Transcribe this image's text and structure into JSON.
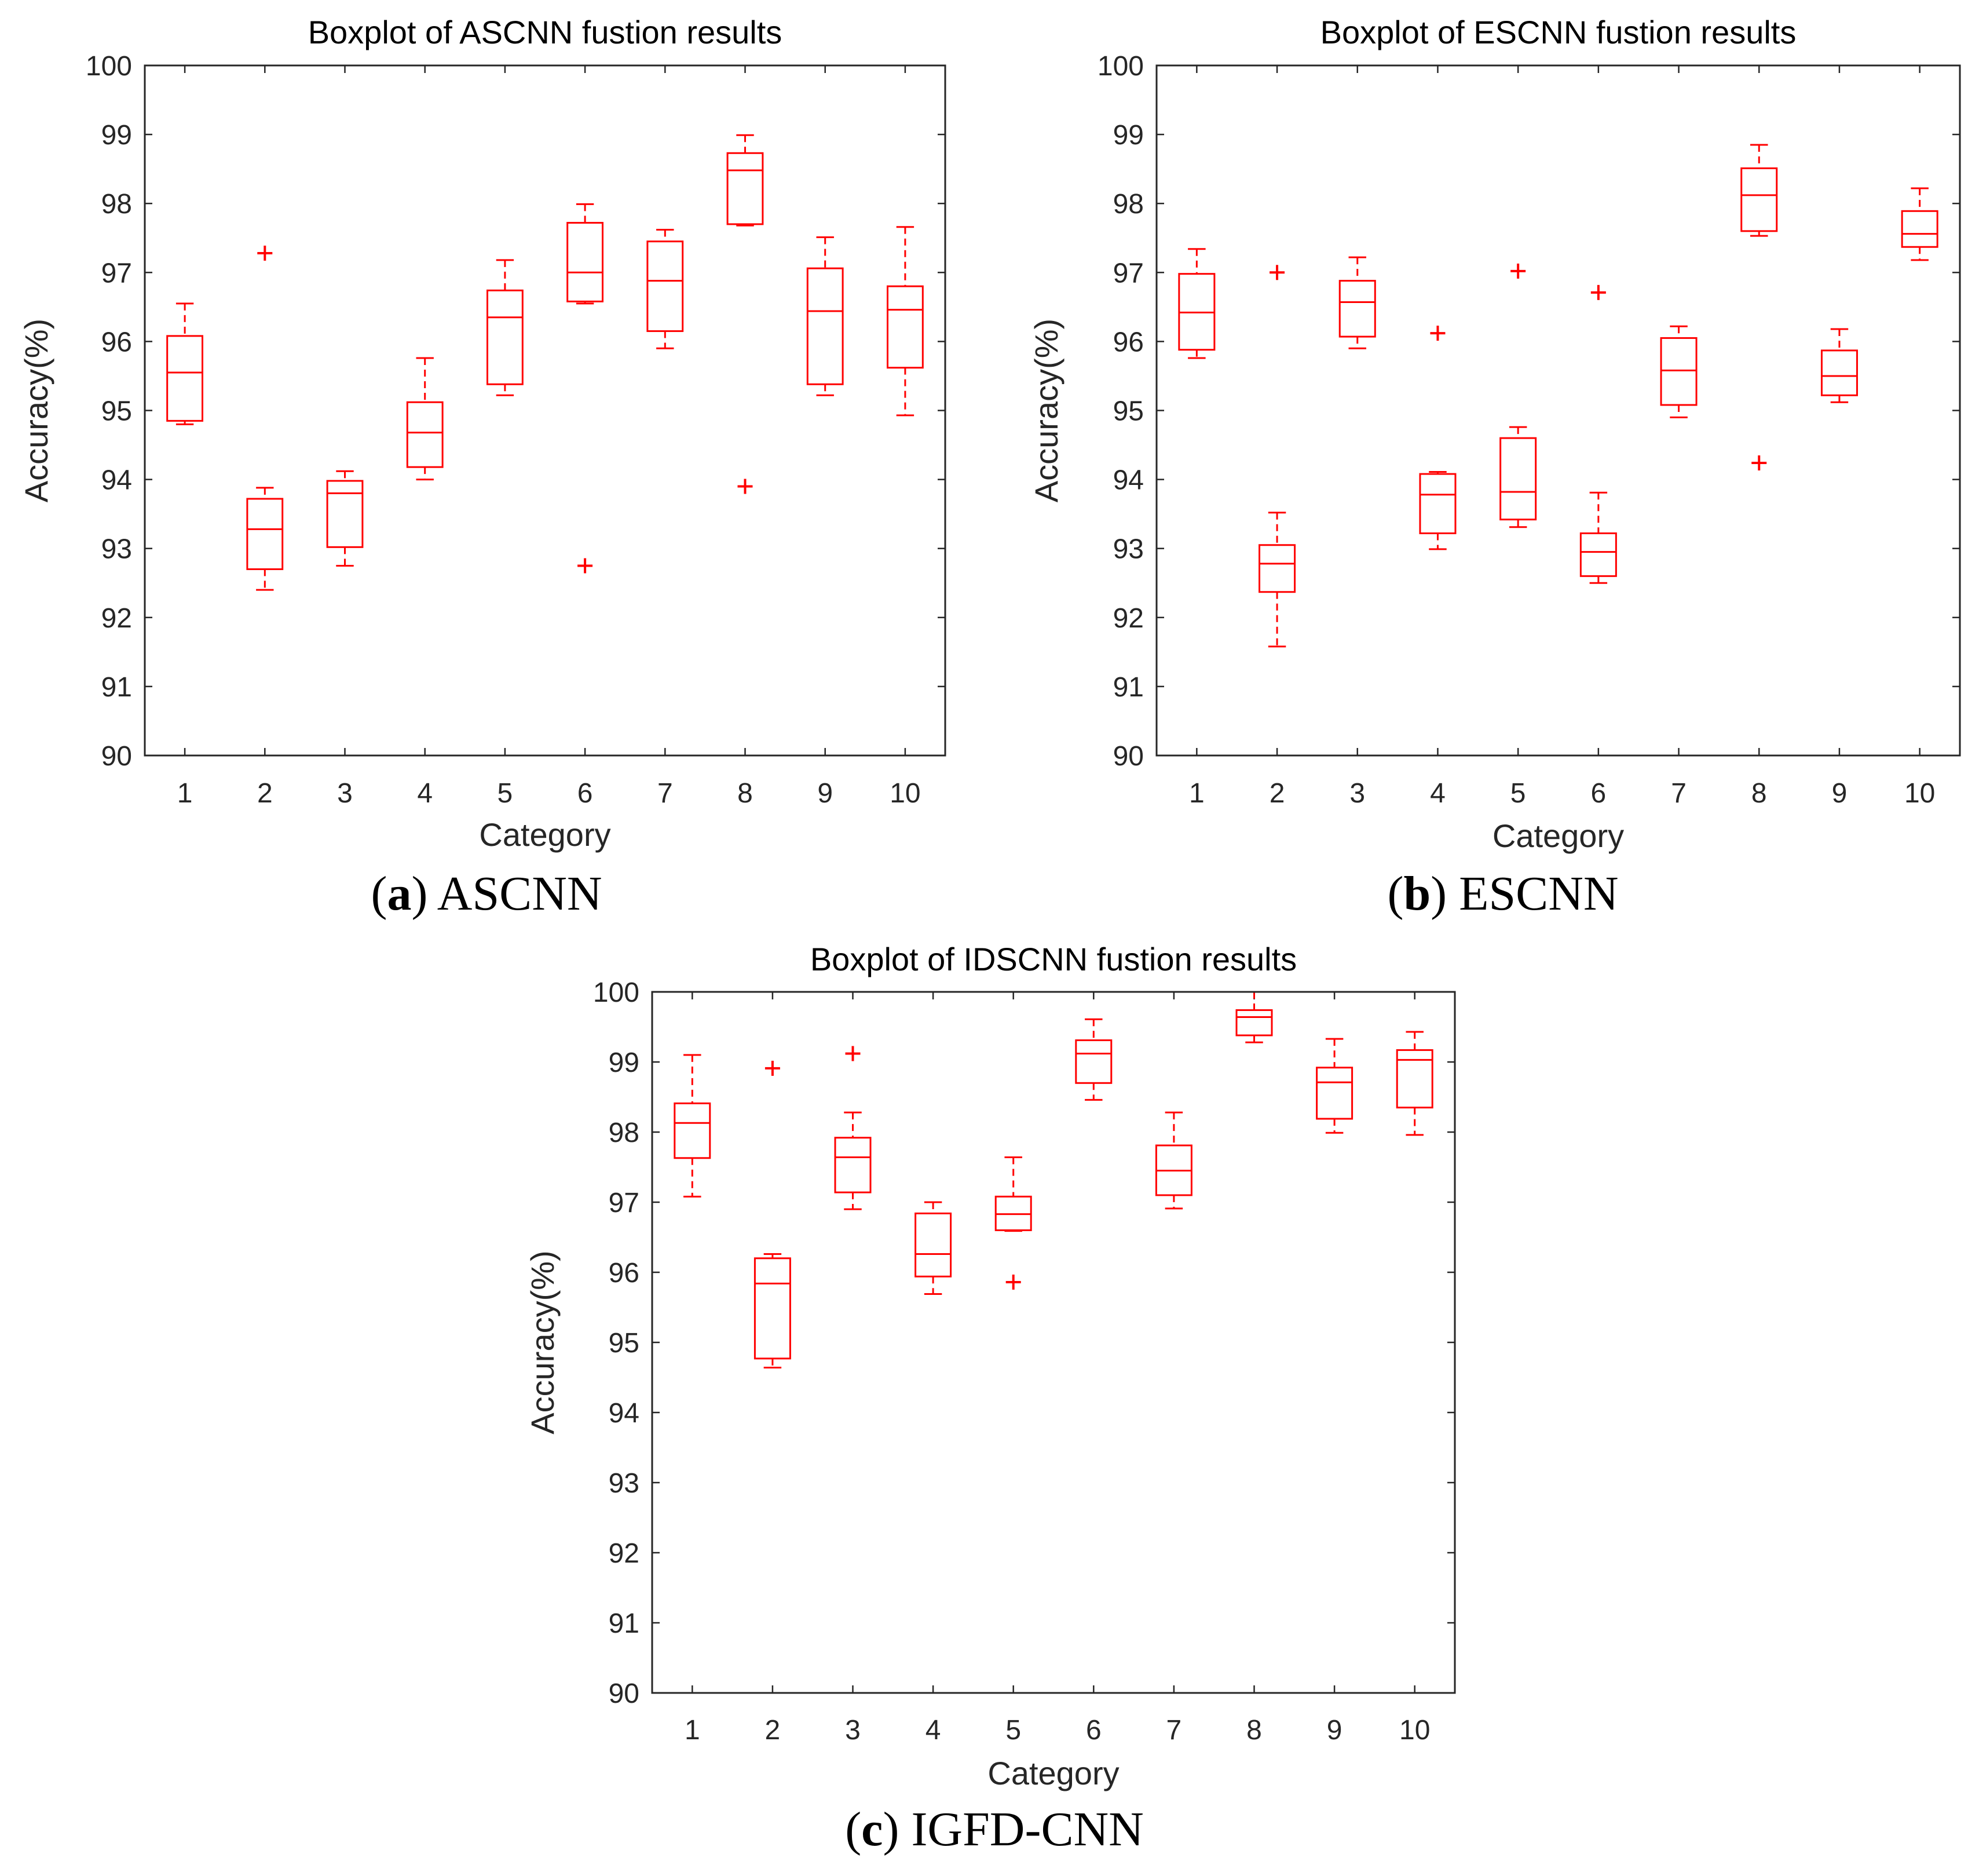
{
  "chart_data": [
    {
      "type": "boxplot",
      "title": "Boxplot of ASCNN fustion results",
      "xlabel": "Category",
      "ylabel": "Accuracy(%)",
      "caption": {
        "letter": "a",
        "text": "ASCNN"
      },
      "ylim": [
        90,
        100
      ],
      "yticks": [
        "90",
        "91",
        "92",
        "93",
        "94",
        "95",
        "96",
        "97",
        "98",
        "99",
        "100"
      ],
      "categories": [
        "1",
        "2",
        "3",
        "4",
        "5",
        "6",
        "7",
        "8",
        "9",
        "10"
      ],
      "boxes": [
        {
          "min": 94.8,
          "q1": 94.85,
          "median": 95.55,
          "q3": 96.08,
          "max": 96.55,
          "outliers": []
        },
        {
          "min": 92.4,
          "q1": 92.7,
          "median": 93.28,
          "q3": 93.72,
          "max": 93.88,
          "outliers": [
            97.28
          ]
        },
        {
          "min": 92.75,
          "q1": 93.02,
          "median": 93.8,
          "q3": 93.98,
          "max": 94.12,
          "outliers": []
        },
        {
          "min": 94.0,
          "q1": 94.18,
          "median": 94.68,
          "q3": 95.12,
          "max": 95.76,
          "outliers": []
        },
        {
          "min": 95.22,
          "q1": 95.38,
          "median": 96.35,
          "q3": 96.74,
          "max": 97.18,
          "outliers": []
        },
        {
          "min": 96.55,
          "q1": 96.58,
          "median": 97.0,
          "q3": 97.72,
          "max": 97.99,
          "outliers": [
            92.75
          ]
        },
        {
          "min": 95.9,
          "q1": 96.15,
          "median": 96.88,
          "q3": 97.45,
          "max": 97.62,
          "outliers": []
        },
        {
          "min": 97.68,
          "q1": 97.7,
          "median": 98.48,
          "q3": 98.73,
          "max": 98.99,
          "outliers": [
            93.9
          ]
        },
        {
          "min": 95.22,
          "q1": 95.38,
          "median": 96.44,
          "q3": 97.06,
          "max": 97.51,
          "outliers": []
        },
        {
          "min": 94.93,
          "q1": 95.62,
          "median": 96.46,
          "q3": 96.8,
          "max": 97.66,
          "outliers": []
        }
      ]
    },
    {
      "type": "boxplot",
      "title": "Boxplot of ESCNN fustion results",
      "xlabel": "Category",
      "ylabel": "Accuracy(%)",
      "caption": {
        "letter": "b",
        "text": "ESCNN"
      },
      "ylim": [
        90,
        100
      ],
      "yticks": [
        "90",
        "91",
        "92",
        "93",
        "94",
        "95",
        "96",
        "97",
        "98",
        "99",
        "100"
      ],
      "categories": [
        "1",
        "2",
        "3",
        "4",
        "5",
        "6",
        "7",
        "8",
        "9",
        "10"
      ],
      "boxes": [
        {
          "min": 95.76,
          "q1": 95.88,
          "median": 96.42,
          "q3": 96.98,
          "max": 97.34,
          "outliers": []
        },
        {
          "min": 91.58,
          "q1": 92.37,
          "median": 92.78,
          "q3": 93.05,
          "max": 93.52,
          "outliers": [
            97.0
          ]
        },
        {
          "min": 95.9,
          "q1": 96.07,
          "median": 96.57,
          "q3": 96.88,
          "max": 97.22,
          "outliers": []
        },
        {
          "min": 92.99,
          "q1": 93.22,
          "median": 93.78,
          "q3": 94.08,
          "max": 94.11,
          "outliers": [
            96.12
          ]
        },
        {
          "min": 93.31,
          "q1": 93.42,
          "median": 93.82,
          "q3": 94.6,
          "max": 94.76,
          "outliers": [
            97.02
          ]
        },
        {
          "min": 92.5,
          "q1": 92.6,
          "median": 92.95,
          "q3": 93.22,
          "max": 93.81,
          "outliers": [
            96.71
          ]
        },
        {
          "min": 94.9,
          "q1": 95.08,
          "median": 95.58,
          "q3": 96.05,
          "max": 96.22,
          "outliers": []
        },
        {
          "min": 97.53,
          "q1": 97.6,
          "median": 98.12,
          "q3": 98.51,
          "max": 98.85,
          "outliers": [
            94.24
          ]
        },
        {
          "min": 95.12,
          "q1": 95.22,
          "median": 95.5,
          "q3": 95.87,
          "max": 96.18,
          "outliers": []
        },
        {
          "min": 97.18,
          "q1": 97.37,
          "median": 97.56,
          "q3": 97.89,
          "max": 98.22,
          "outliers": []
        }
      ]
    },
    {
      "type": "boxplot",
      "title": "Boxplot of IDSCNN fustion results",
      "xlabel": "Category",
      "ylabel": "Accuracy(%)",
      "caption": {
        "letter": "c",
        "text": "IGFD-CNN"
      },
      "ylim": [
        90,
        100
      ],
      "yticks": [
        "90",
        "91",
        "92",
        "93",
        "94",
        "95",
        "96",
        "97",
        "98",
        "99",
        "100"
      ],
      "categories": [
        "1",
        "2",
        "3",
        "4",
        "5",
        "6",
        "7",
        "8",
        "9",
        "10"
      ],
      "boxes": [
        {
          "min": 97.08,
          "q1": 97.63,
          "median": 98.13,
          "q3": 98.41,
          "max": 99.1,
          "outliers": []
        },
        {
          "min": 94.64,
          "q1": 94.77,
          "median": 95.84,
          "q3": 96.2,
          "max": 96.26,
          "outliers": [
            98.91
          ]
        },
        {
          "min": 96.9,
          "q1": 97.14,
          "median": 97.64,
          "q3": 97.92,
          "max": 98.28,
          "outliers": [
            99.12
          ]
        },
        {
          "min": 95.69,
          "q1": 95.94,
          "median": 96.26,
          "q3": 96.84,
          "max": 97.0,
          "outliers": []
        },
        {
          "min": 96.59,
          "q1": 96.6,
          "median": 96.83,
          "q3": 97.08,
          "max": 97.64,
          "outliers": [
            95.86
          ]
        },
        {
          "min": 98.46,
          "q1": 98.7,
          "median": 99.12,
          "q3": 99.31,
          "max": 99.61,
          "outliers": []
        },
        {
          "min": 96.91,
          "q1": 97.1,
          "median": 97.45,
          "q3": 97.81,
          "max": 98.28,
          "outliers": []
        },
        {
          "min": 99.28,
          "q1": 99.38,
          "median": 99.64,
          "q3": 99.74,
          "max": 100.0,
          "outliers": []
        },
        {
          "min": 97.99,
          "q1": 98.19,
          "median": 98.71,
          "q3": 98.92,
          "max": 99.33,
          "outliers": []
        },
        {
          "min": 97.96,
          "q1": 98.35,
          "median": 99.03,
          "q3": 99.17,
          "max": 99.43,
          "outliers": []
        }
      ]
    }
  ],
  "colors": {
    "box": "#ff0000",
    "axis": "#262626",
    "background": "#ffffff"
  }
}
